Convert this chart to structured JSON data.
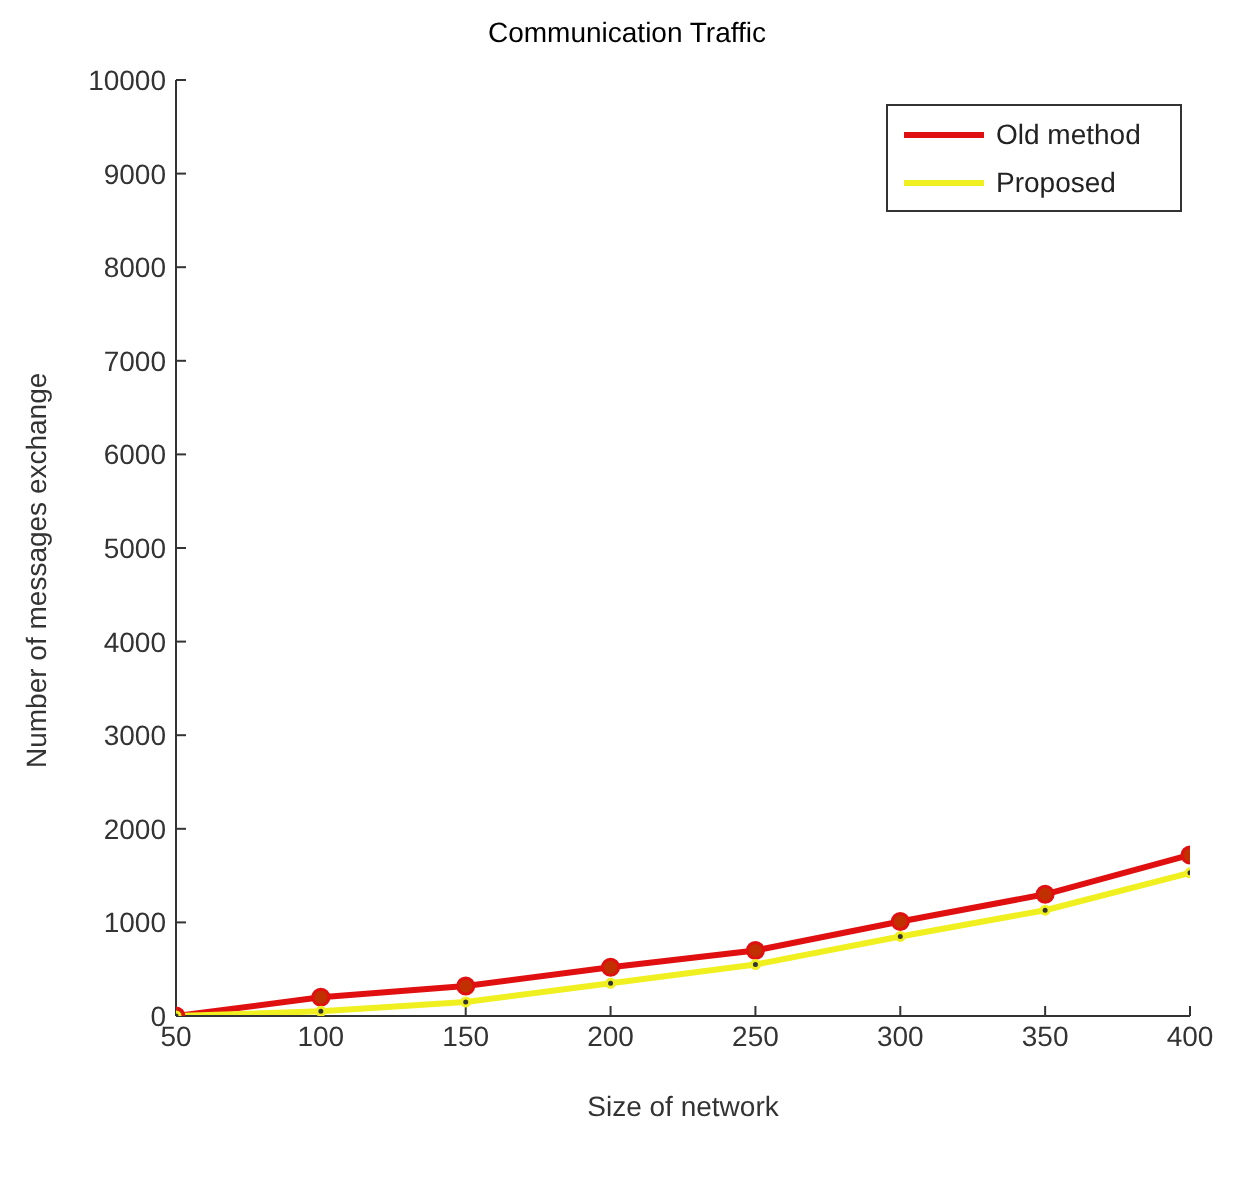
{
  "chart_data": {
    "type": "line",
    "title": "Communication Traffic",
    "xlabel": "Size of network",
    "ylabel": "Number of messages exchange",
    "x": [
      50,
      100,
      150,
      200,
      250,
      300,
      350,
      400
    ],
    "series": [
      {
        "name": "Old method",
        "color": "#e01010",
        "values": [
          0,
          200,
          320,
          520,
          700,
          1010,
          1300,
          1720
        ],
        "marker": "circle"
      },
      {
        "name": "Proposed",
        "color": "#f0f020",
        "values": [
          0,
          50,
          150,
          350,
          550,
          850,
          1130,
          1530
        ],
        "marker": "circle"
      }
    ],
    "xlim": [
      50,
      400
    ],
    "xticks": [
      50,
      100,
      150,
      200,
      250,
      300,
      350,
      400
    ],
    "ylim": [
      0,
      10000
    ],
    "yticks": [
      0,
      1000,
      2000,
      3000,
      4000,
      5000,
      6000,
      7000,
      8000,
      9000,
      10000
    ],
    "grid": false,
    "legend": "top right"
  }
}
